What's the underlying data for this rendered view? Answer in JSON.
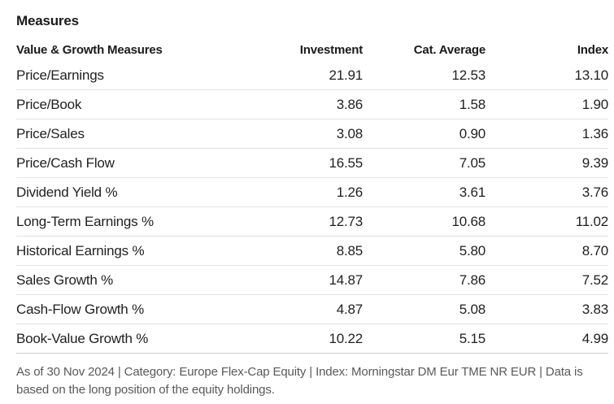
{
  "section": {
    "title": "Measures"
  },
  "table": {
    "headers": {
      "label": "Value & Growth Measures",
      "investment": "Investment",
      "cat_average": "Cat. Average",
      "index": "Index"
    },
    "rows": [
      {
        "label": "Price/Earnings",
        "investment": "21.91",
        "cat_average": "12.53",
        "index": "13.10"
      },
      {
        "label": "Price/Book",
        "investment": "3.86",
        "cat_average": "1.58",
        "index": "1.90"
      },
      {
        "label": "Price/Sales",
        "investment": "3.08",
        "cat_average": "0.90",
        "index": "1.36"
      },
      {
        "label": "Price/Cash Flow",
        "investment": "16.55",
        "cat_average": "7.05",
        "index": "9.39"
      },
      {
        "label": "Dividend Yield %",
        "investment": "1.26",
        "cat_average": "3.61",
        "index": "3.76"
      },
      {
        "label": "Long-Term Earnings %",
        "investment": "12.73",
        "cat_average": "10.68",
        "index": "11.02"
      },
      {
        "label": "Historical Earnings %",
        "investment": "8.85",
        "cat_average": "5.80",
        "index": "8.70"
      },
      {
        "label": "Sales Growth %",
        "investment": "14.87",
        "cat_average": "7.86",
        "index": "7.52"
      },
      {
        "label": "Cash-Flow Growth %",
        "investment": "4.87",
        "cat_average": "5.08",
        "index": "3.83"
      },
      {
        "label": "Book-Value Growth %",
        "investment": "10.22",
        "cat_average": "5.15",
        "index": "4.99"
      }
    ]
  },
  "footnote": "As of 30 Nov 2024 | Category: Europe Flex-Cap Equity | Index: Morningstar DM Eur TME NR EUR | Data is based on the long position of the equity holdings."
}
